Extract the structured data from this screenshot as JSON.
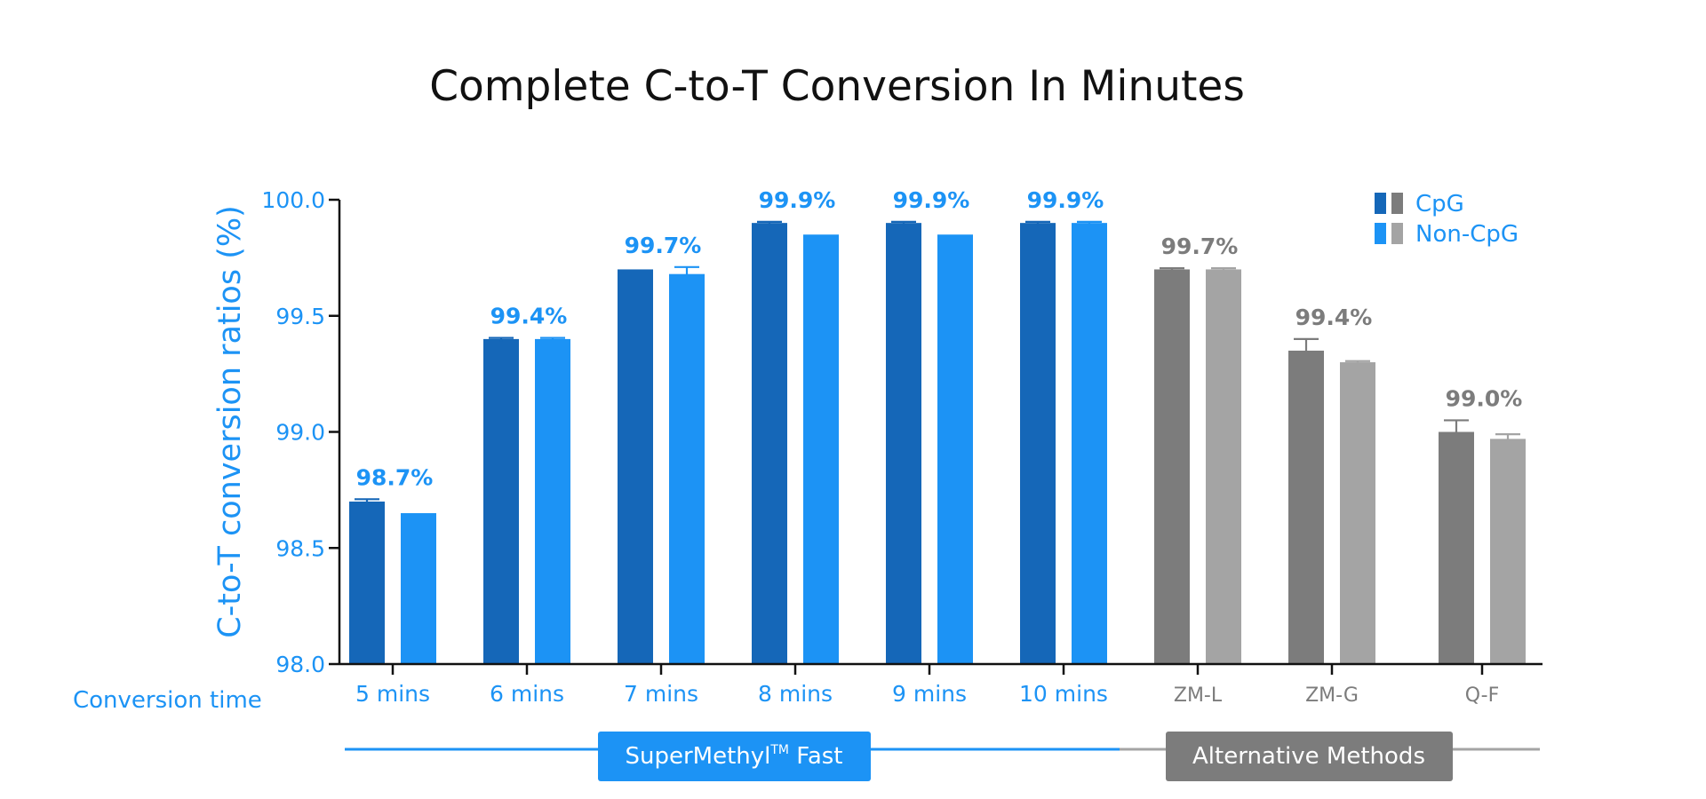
{
  "colors": {
    "cpg_blue": "#1567b8",
    "noncpg_blue": "#1c93f5",
    "cpg_gray": "#7c7c7c",
    "noncpg_gray": "#a4a4a4",
    "label_blue": "#1c93f5",
    "label_gray": "#7c7c7c",
    "axis": "#111111",
    "title": "#111111"
  },
  "chart_data": {
    "type": "bar",
    "title": "Complete C-to-T Conversion In Minutes",
    "ylabel": "C-to-T conversion ratios (%)",
    "xlabel": "Conversion time",
    "ylim": [
      98.0,
      100.0
    ],
    "yticks": [
      "98.0",
      "98.5",
      "99.0",
      "99.5",
      "100.0"
    ],
    "categories": [
      "5 mins",
      "6 mins",
      "7 mins",
      "8 mins",
      "9 mins",
      "10 mins",
      "ZM-L",
      "ZM-G",
      "Q-F"
    ],
    "category_group": [
      "supermethyl",
      "supermethyl",
      "supermethyl",
      "supermethyl",
      "supermethyl",
      "supermethyl",
      "alternative",
      "alternative",
      "alternative"
    ],
    "series": [
      {
        "name": "CpG",
        "values": [
          98.7,
          99.4,
          99.7,
          99.9,
          99.9,
          99.9,
          99.7,
          99.35,
          99.0
        ],
        "error": [
          0.01,
          0.005,
          0,
          0.005,
          0.005,
          0.005,
          0.005,
          0.05,
          0.05
        ]
      },
      {
        "name": "Non-CpG",
        "values": [
          98.65,
          99.4,
          99.68,
          99.85,
          99.85,
          99.9,
          99.7,
          99.3,
          98.97
        ],
        "error": [
          0,
          0.005,
          0.03,
          0,
          0,
          0.005,
          0.005,
          0.005,
          0.02
        ]
      }
    ],
    "data_labels": [
      "98.7%",
      "99.4%",
      "99.7%",
      "99.9%",
      "99.9%",
      "99.9%",
      "99.7%",
      "99.4%",
      "99.0%"
    ],
    "legend": {
      "position": "top-right",
      "entries": [
        "CpG",
        "Non-CpG"
      ]
    },
    "groups": [
      {
        "key": "supermethyl",
        "label": "SuperMethyl",
        "superscript": "TM",
        "label_suffix": " Fast"
      },
      {
        "key": "alternative",
        "label": "Alternative Methods"
      }
    ],
    "grid": false
  }
}
